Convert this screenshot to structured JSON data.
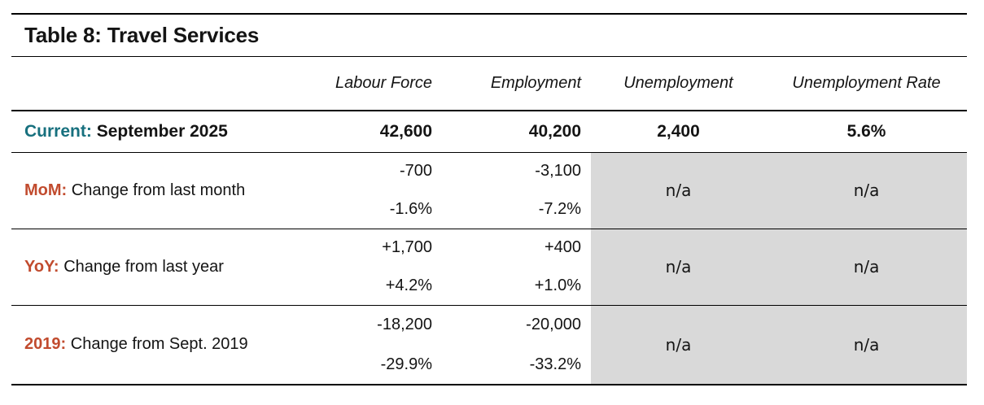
{
  "title": "Table 8: Travel Services",
  "columns": [
    "",
    "Labour Force",
    "Employment",
    "Unemployment",
    "Unemployment Rate"
  ],
  "current": {
    "prefix": "Current:",
    "label": "September 2025",
    "labour_force": "42,600",
    "employment": "40,200",
    "unemployment": "2,400",
    "unemployment_rate": "5.6%"
  },
  "sections": [
    {
      "prefix": "MoM:",
      "label": "Change from last month",
      "labour_force": {
        "change": "-700",
        "pct": "-1.6%"
      },
      "employment": {
        "change": "-3,100",
        "pct": "-7.2%"
      },
      "unemployment": "n/a",
      "unemployment_rate": "n/a"
    },
    {
      "prefix": "YoY:",
      "label": "Change from last year",
      "labour_force": {
        "change": "+1,700",
        "pct": "+4.2%"
      },
      "employment": {
        "change": "+400",
        "pct": "+1.0%"
      },
      "unemployment": "n/a",
      "unemployment_rate": "n/a"
    },
    {
      "prefix": "2019:",
      "label": "Change from Sept. 2019",
      "labour_force": {
        "change": "-18,200",
        "pct": "-29.9%"
      },
      "employment": {
        "change": "-20,000",
        "pct": "-33.2%"
      },
      "unemployment": "n/a",
      "unemployment_rate": "n/a"
    }
  ],
  "colors": {
    "accent_teal": "#17707E",
    "accent_orange": "#C14B2E",
    "na_cell_gray": "#D9D9D9",
    "border_black": "#000000"
  },
  "chart_data": {
    "type": "table",
    "title": "Table 8: Travel Services",
    "columns": [
      "Labour Force",
      "Employment",
      "Unemployment",
      "Unemployment Rate"
    ],
    "rows": [
      {
        "label": "Current: September 2025",
        "values": [
          "42,600",
          "40,200",
          "2,400",
          "5.6%"
        ]
      },
      {
        "label": "MoM: Change from last month",
        "values": [
          "-700 / -1.6%",
          "-3,100 / -7.2%",
          "n/a",
          "n/a"
        ]
      },
      {
        "label": "YoY: Change from last year",
        "values": [
          "+1,700 / +4.2%",
          "+400 / +1.0%",
          "n/a",
          "n/a"
        ]
      },
      {
        "label": "2019: Change from Sept. 2019",
        "values": [
          "-18,200 / -29.9%",
          "-20,000 / -33.2%",
          "n/a",
          "n/a"
        ]
      }
    ],
    "layout": {
      "shaded_na_columns": [
        "Unemployment",
        "Unemployment Rate"
      ],
      "grid": "horizontal-rules-only"
    }
  }
}
